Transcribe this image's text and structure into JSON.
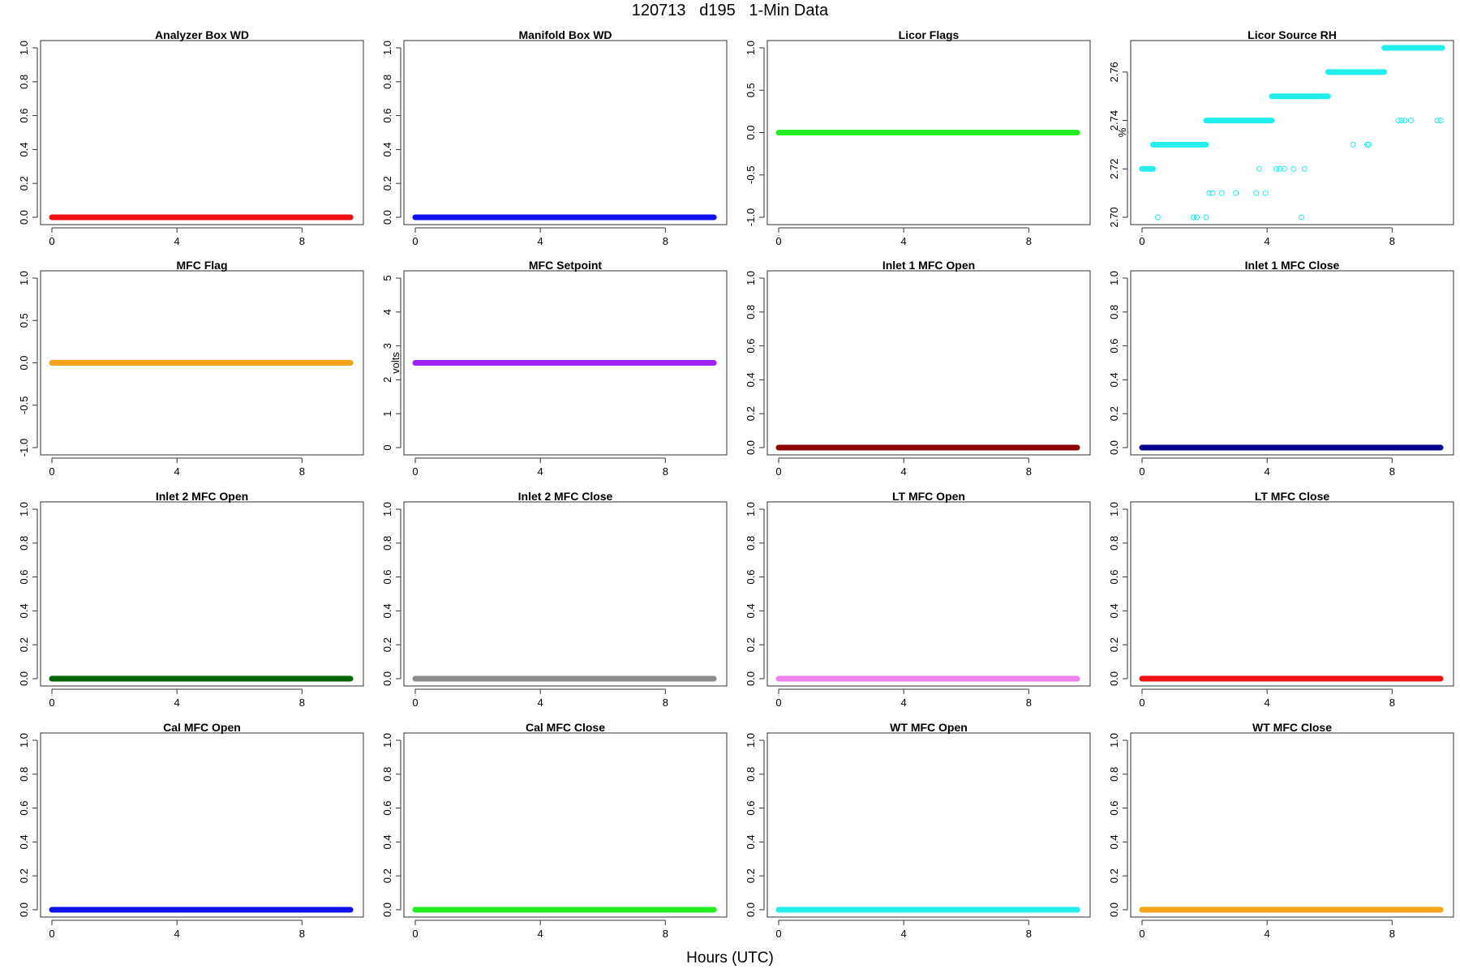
{
  "figure": {
    "title": "120713   d195   1-Min Data",
    "xlabel": "Hours (UTC)"
  },
  "chart_data": [
    {
      "type": "scatter",
      "title": "Analyzer Box WD",
      "ylabel": "",
      "ylim": [
        0,
        1
      ],
      "yticks": [
        "0.0",
        "0.2",
        "0.4",
        "0.6",
        "0.8",
        "1.0"
      ],
      "xlim": [
        0,
        9.6
      ],
      "xticks": [
        "0",
        "4",
        "8"
      ],
      "color": "#ee1111",
      "series": [
        {
          "x_start": 0,
          "x_end": 9.55,
          "y": 0
        }
      ]
    },
    {
      "type": "scatter",
      "title": "Manifold Box WD",
      "ylabel": "",
      "ylim": [
        0,
        1
      ],
      "yticks": [
        "0.0",
        "0.2",
        "0.4",
        "0.6",
        "0.8",
        "1.0"
      ],
      "xlim": [
        0,
        9.6
      ],
      "xticks": [
        "0",
        "4",
        "8"
      ],
      "color": "#1111ee",
      "series": [
        {
          "x_start": 0,
          "x_end": 9.55,
          "y": 0
        }
      ]
    },
    {
      "type": "scatter",
      "title": "Licor Flags",
      "ylabel": "",
      "ylim": [
        -1,
        1
      ],
      "yticks": [
        "-1.0",
        "-0.5",
        "0.0",
        "0.5",
        "1.0"
      ],
      "xlim": [
        0,
        9.6
      ],
      "xticks": [
        "0",
        "4",
        "8"
      ],
      "color": "#22ee22",
      "series": [
        {
          "x_start": 0,
          "x_end": 9.55,
          "y": 0
        }
      ]
    },
    {
      "type": "scatter",
      "title": "Licor Source RH",
      "ylabel": "%",
      "ylim": [
        2.7,
        2.77
      ],
      "yticks": [
        "2.70",
        "2.72",
        "2.74",
        "2.76"
      ],
      "xlim": [
        0,
        9.6
      ],
      "xticks": [
        "0",
        "4",
        "8"
      ],
      "color": "#22eeee",
      "series": [
        {
          "x_start": 0.0,
          "x_end": 0.35,
          "y": 2.72
        },
        {
          "x_start": 0.35,
          "x_end": 2.05,
          "y": 2.73
        },
        {
          "x_start": 2.05,
          "x_end": 4.15,
          "y": 2.74
        },
        {
          "x_start": 4.15,
          "x_end": 5.95,
          "y": 2.75
        },
        {
          "x_start": 5.95,
          "x_end": 7.75,
          "y": 2.76
        },
        {
          "x_start": 7.75,
          "x_end": 9.6,
          "y": 2.77
        }
      ],
      "outliers": [
        {
          "x": 0.5,
          "y": 2.7
        },
        {
          "x": 1.65,
          "y": 2.7
        },
        {
          "x": 1.75,
          "y": 2.7
        },
        {
          "x": 2.05,
          "y": 2.7
        },
        {
          "x": 5.1,
          "y": 2.7
        },
        {
          "x": 2.15,
          "y": 2.71
        },
        {
          "x": 2.25,
          "y": 2.71
        },
        {
          "x": 2.55,
          "y": 2.71
        },
        {
          "x": 3.0,
          "y": 2.71
        },
        {
          "x": 3.65,
          "y": 2.71
        },
        {
          "x": 3.95,
          "y": 2.71
        },
        {
          "x": 3.75,
          "y": 2.72
        },
        {
          "x": 4.3,
          "y": 2.72
        },
        {
          "x": 4.4,
          "y": 2.72
        },
        {
          "x": 4.55,
          "y": 2.72
        },
        {
          "x": 4.85,
          "y": 2.72
        },
        {
          "x": 5.2,
          "y": 2.72
        },
        {
          "x": 6.75,
          "y": 2.73
        },
        {
          "x": 7.2,
          "y": 2.73
        },
        {
          "x": 7.25,
          "y": 2.73
        },
        {
          "x": 8.2,
          "y": 2.74
        },
        {
          "x": 8.3,
          "y": 2.74
        },
        {
          "x": 8.4,
          "y": 2.74
        },
        {
          "x": 8.6,
          "y": 2.74
        },
        {
          "x": 9.45,
          "y": 2.74
        },
        {
          "x": 9.55,
          "y": 2.74
        }
      ]
    },
    {
      "type": "scatter",
      "title": "MFC Flag",
      "ylabel": "",
      "ylim": [
        -1,
        1
      ],
      "yticks": [
        "-1.0",
        "-0.5",
        "0.0",
        "0.5",
        "1.0"
      ],
      "xlim": [
        0,
        9.6
      ],
      "xticks": [
        "0",
        "4",
        "8"
      ],
      "color": "#f5a31a",
      "series": [
        {
          "x_start": 0,
          "x_end": 9.55,
          "y": 0
        }
      ]
    },
    {
      "type": "scatter",
      "title": "MFC Setpoint",
      "ylabel": "volts",
      "ylim": [
        0,
        5
      ],
      "yticks": [
        "0",
        "1",
        "2",
        "3",
        "4",
        "5"
      ],
      "xlim": [
        0,
        9.6
      ],
      "xticks": [
        "0",
        "4",
        "8"
      ],
      "color": "#a020f0",
      "series": [
        {
          "x_start": 0,
          "x_end": 9.55,
          "y": 2.5
        }
      ]
    },
    {
      "type": "scatter",
      "title": "Inlet 1 MFC Open",
      "ylabel": "",
      "ylim": [
        0,
        1
      ],
      "yticks": [
        "0.0",
        "0.2",
        "0.4",
        "0.6",
        "0.8",
        "1.0"
      ],
      "xlim": [
        0,
        9.6
      ],
      "xticks": [
        "0",
        "4",
        "8"
      ],
      "color": "#8b0000",
      "series": [
        {
          "x_start": 0,
          "x_end": 9.55,
          "y": 0
        }
      ]
    },
    {
      "type": "scatter",
      "title": "Inlet 1 MFC Close",
      "ylabel": "",
      "ylim": [
        0,
        1
      ],
      "yticks": [
        "0.0",
        "0.2",
        "0.4",
        "0.6",
        "0.8",
        "1.0"
      ],
      "xlim": [
        0,
        9.6
      ],
      "xticks": [
        "0",
        "4",
        "8"
      ],
      "color": "#00008b",
      "series": [
        {
          "x_start": 0,
          "x_end": 9.55,
          "y": 0
        }
      ]
    },
    {
      "type": "scatter",
      "title": "Inlet 2 MFC Open",
      "ylabel": "",
      "ylim": [
        0,
        1
      ],
      "yticks": [
        "0.0",
        "0.2",
        "0.4",
        "0.6",
        "0.8",
        "1.0"
      ],
      "xlim": [
        0,
        9.6
      ],
      "xticks": [
        "0",
        "4",
        "8"
      ],
      "color": "#006400",
      "series": [
        {
          "x_start": 0,
          "x_end": 9.55,
          "y": 0
        }
      ]
    },
    {
      "type": "scatter",
      "title": "Inlet 2 MFC Close",
      "ylabel": "",
      "ylim": [
        0,
        1
      ],
      "yticks": [
        "0.0",
        "0.2",
        "0.4",
        "0.6",
        "0.8",
        "1.0"
      ],
      "xlim": [
        0,
        9.6
      ],
      "xticks": [
        "0",
        "4",
        "8"
      ],
      "color": "#8c8c8c",
      "series": [
        {
          "x_start": 0,
          "x_end": 9.55,
          "y": 0
        }
      ]
    },
    {
      "type": "scatter",
      "title": "LT MFC Open",
      "ylabel": "",
      "ylim": [
        0,
        1
      ],
      "yticks": [
        "0.0",
        "0.2",
        "0.4",
        "0.6",
        "0.8",
        "1.0"
      ],
      "xlim": [
        0,
        9.6
      ],
      "xticks": [
        "0",
        "4",
        "8"
      ],
      "color": "#ee82ee",
      "series": [
        {
          "x_start": 0,
          "x_end": 9.55,
          "y": 0
        }
      ]
    },
    {
      "type": "scatter",
      "title": "LT MFC Close",
      "ylabel": "",
      "ylim": [
        0,
        1
      ],
      "yticks": [
        "0.0",
        "0.2",
        "0.4",
        "0.6",
        "0.8",
        "1.0"
      ],
      "xlim": [
        0,
        9.6
      ],
      "xticks": [
        "0",
        "4",
        "8"
      ],
      "color": "#ee1111",
      "series": [
        {
          "x_start": 0,
          "x_end": 9.55,
          "y": 0
        }
      ]
    },
    {
      "type": "scatter",
      "title": "Cal MFC Open",
      "ylabel": "",
      "ylim": [
        0,
        1
      ],
      "yticks": [
        "0.0",
        "0.2",
        "0.4",
        "0.6",
        "0.8",
        "1.0"
      ],
      "xlim": [
        0,
        9.6
      ],
      "xticks": [
        "0",
        "4",
        "8"
      ],
      "color": "#1111ee",
      "series": [
        {
          "x_start": 0,
          "x_end": 9.55,
          "y": 0
        }
      ]
    },
    {
      "type": "scatter",
      "title": "Cal MFC Close",
      "ylabel": "",
      "ylim": [
        0,
        1
      ],
      "yticks": [
        "0.0",
        "0.2",
        "0.4",
        "0.6",
        "0.8",
        "1.0"
      ],
      "xlim": [
        0,
        9.6
      ],
      "xticks": [
        "0",
        "4",
        "8"
      ],
      "color": "#22ee22",
      "series": [
        {
          "x_start": 0,
          "x_end": 9.55,
          "y": 0
        }
      ]
    },
    {
      "type": "scatter",
      "title": "WT MFC Open",
      "ylabel": "",
      "ylim": [
        0,
        1
      ],
      "yticks": [
        "0.0",
        "0.2",
        "0.4",
        "0.6",
        "0.8",
        "1.0"
      ],
      "xlim": [
        0,
        9.6
      ],
      "xticks": [
        "0",
        "4",
        "8"
      ],
      "color": "#22eeee",
      "series": [
        {
          "x_start": 0,
          "x_end": 9.55,
          "y": 0
        }
      ]
    },
    {
      "type": "scatter",
      "title": "WT MFC Close",
      "ylabel": "",
      "ylim": [
        0,
        1
      ],
      "yticks": [
        "0.0",
        "0.2",
        "0.4",
        "0.6",
        "0.8",
        "1.0"
      ],
      "xlim": [
        0,
        9.6
      ],
      "xticks": [
        "0",
        "4",
        "8"
      ],
      "color": "#f5a31a",
      "series": [
        {
          "x_start": 0,
          "x_end": 9.55,
          "y": 0
        }
      ]
    }
  ]
}
